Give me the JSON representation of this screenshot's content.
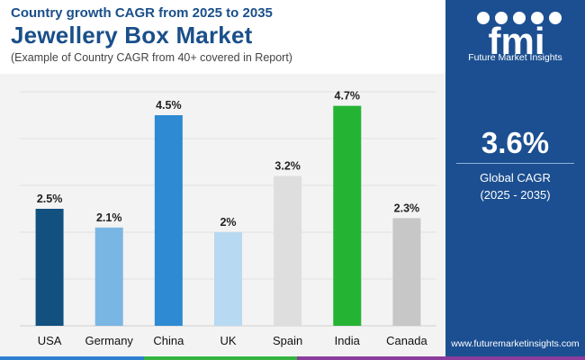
{
  "header": {
    "kicker": "Country growth CAGR from 2025 to 2035",
    "title": "Jewellery Box Market",
    "subtitle": "(Example of Country CAGR from 40+ covered in Report)"
  },
  "side_panel": {
    "logo_text": "fmi",
    "logo_caption": "Future Market Insights",
    "global_value": "3.6%",
    "global_label_1": "Global CAGR",
    "global_label_2": "(2025 - 2035)",
    "website": "www.futuremarketinsights.com"
  },
  "colors": {
    "title_blue": "#1a4f8a",
    "panel_blue": "#1b4f91",
    "strip": [
      "#2f7fd0",
      "#36b341",
      "#8a3d9c"
    ]
  },
  "chart_data": {
    "type": "bar",
    "title": "",
    "xlabel": "",
    "ylabel": "",
    "ylim": [
      0,
      5
    ],
    "grid": true,
    "categories": [
      "USA",
      "Germany",
      "China",
      "UK",
      "Spain",
      "India",
      "Canada"
    ],
    "values": [
      2.5,
      2.1,
      4.5,
      2.0,
      3.2,
      4.7,
      2.3
    ],
    "labels": [
      "2.5%",
      "2.1%",
      "4.5%",
      "2%",
      "3.2%",
      "4.7%",
      "2.3%"
    ],
    "colors": [
      "#11507f",
      "#7ab6e3",
      "#2d8ad3",
      "#b8d9f2",
      "#dedede",
      "#25b333",
      "#c7c7c7"
    ]
  }
}
